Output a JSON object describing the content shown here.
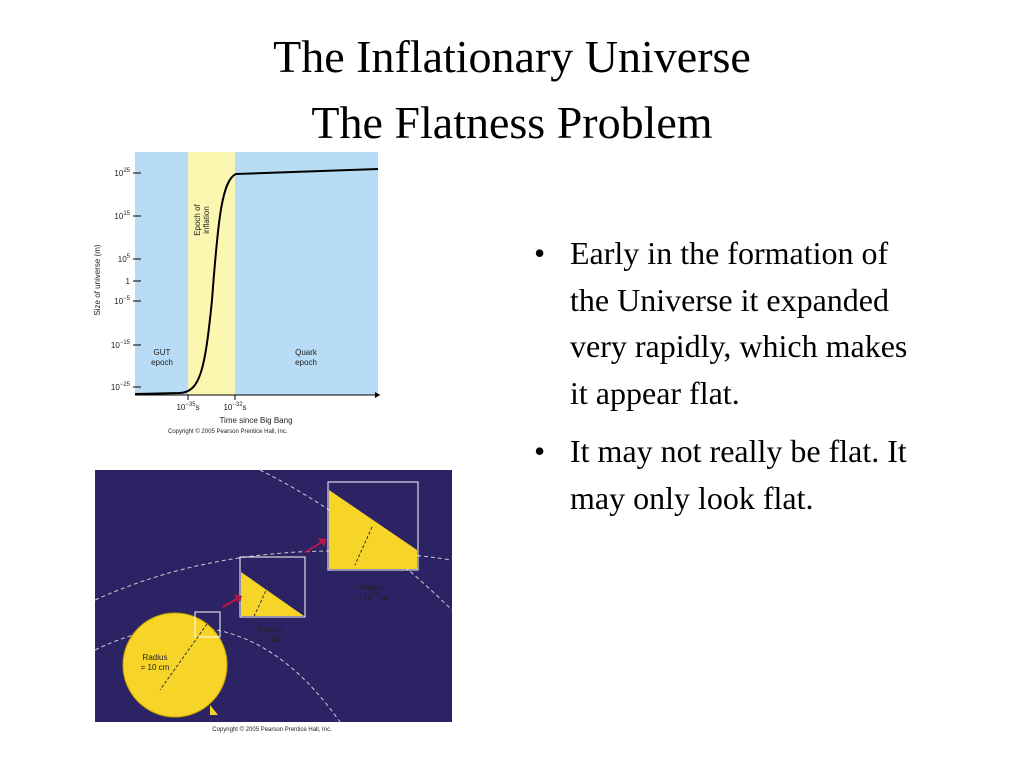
{
  "title": [
    "The Inflationary Universe",
    "The Flatness Problem"
  ],
  "bullets": [
    "Early in the formation of the Universe it expanded very rapidly, which makes it appear flat.",
    "It may not really be flat. It may only look flat."
  ],
  "figure_1": {
    "y_axis_label": "Size of universe (m)",
    "y_tick_labels": [
      {
        "base": "10",
        "exp": "25"
      },
      {
        "base": "10",
        "exp": "15"
      },
      {
        "base": "10",
        "exp": "5"
      },
      "1",
      {
        "base": "10",
        "exp": "−5"
      },
      {
        "base": "10",
        "exp": "−15"
      },
      {
        "base": "10",
        "exp": "−25"
      }
    ],
    "x_tick_labels": [
      {
        "base": "10",
        "exp": "−35",
        "suffix": "s"
      },
      {
        "base": "10",
        "exp": "−32",
        "suffix": "s"
      }
    ],
    "x_axis_label": "Time since Big Bang",
    "region_labels": [
      [
        "GUT",
        "epoch"
      ],
      [
        "Epoch of",
        "inflation"
      ],
      [
        "Quark",
        "epoch"
      ]
    ],
    "copyright": "Copyright © 2005 Pearson Prentice Hall, Inc."
  },
  "figure_2": {
    "labels": [
      [
        "Radius",
        "= 10 cm"
      ],
      [
        "Radius",
        "= 1 km"
      ],
      [
        "Radius",
        {
          "base": "= 10",
          "exp": "25",
          "suffix": " m"
        }
      ]
    ],
    "copyright": "Copyright © 2005 Pearson Prentice Hall, Inc."
  }
}
